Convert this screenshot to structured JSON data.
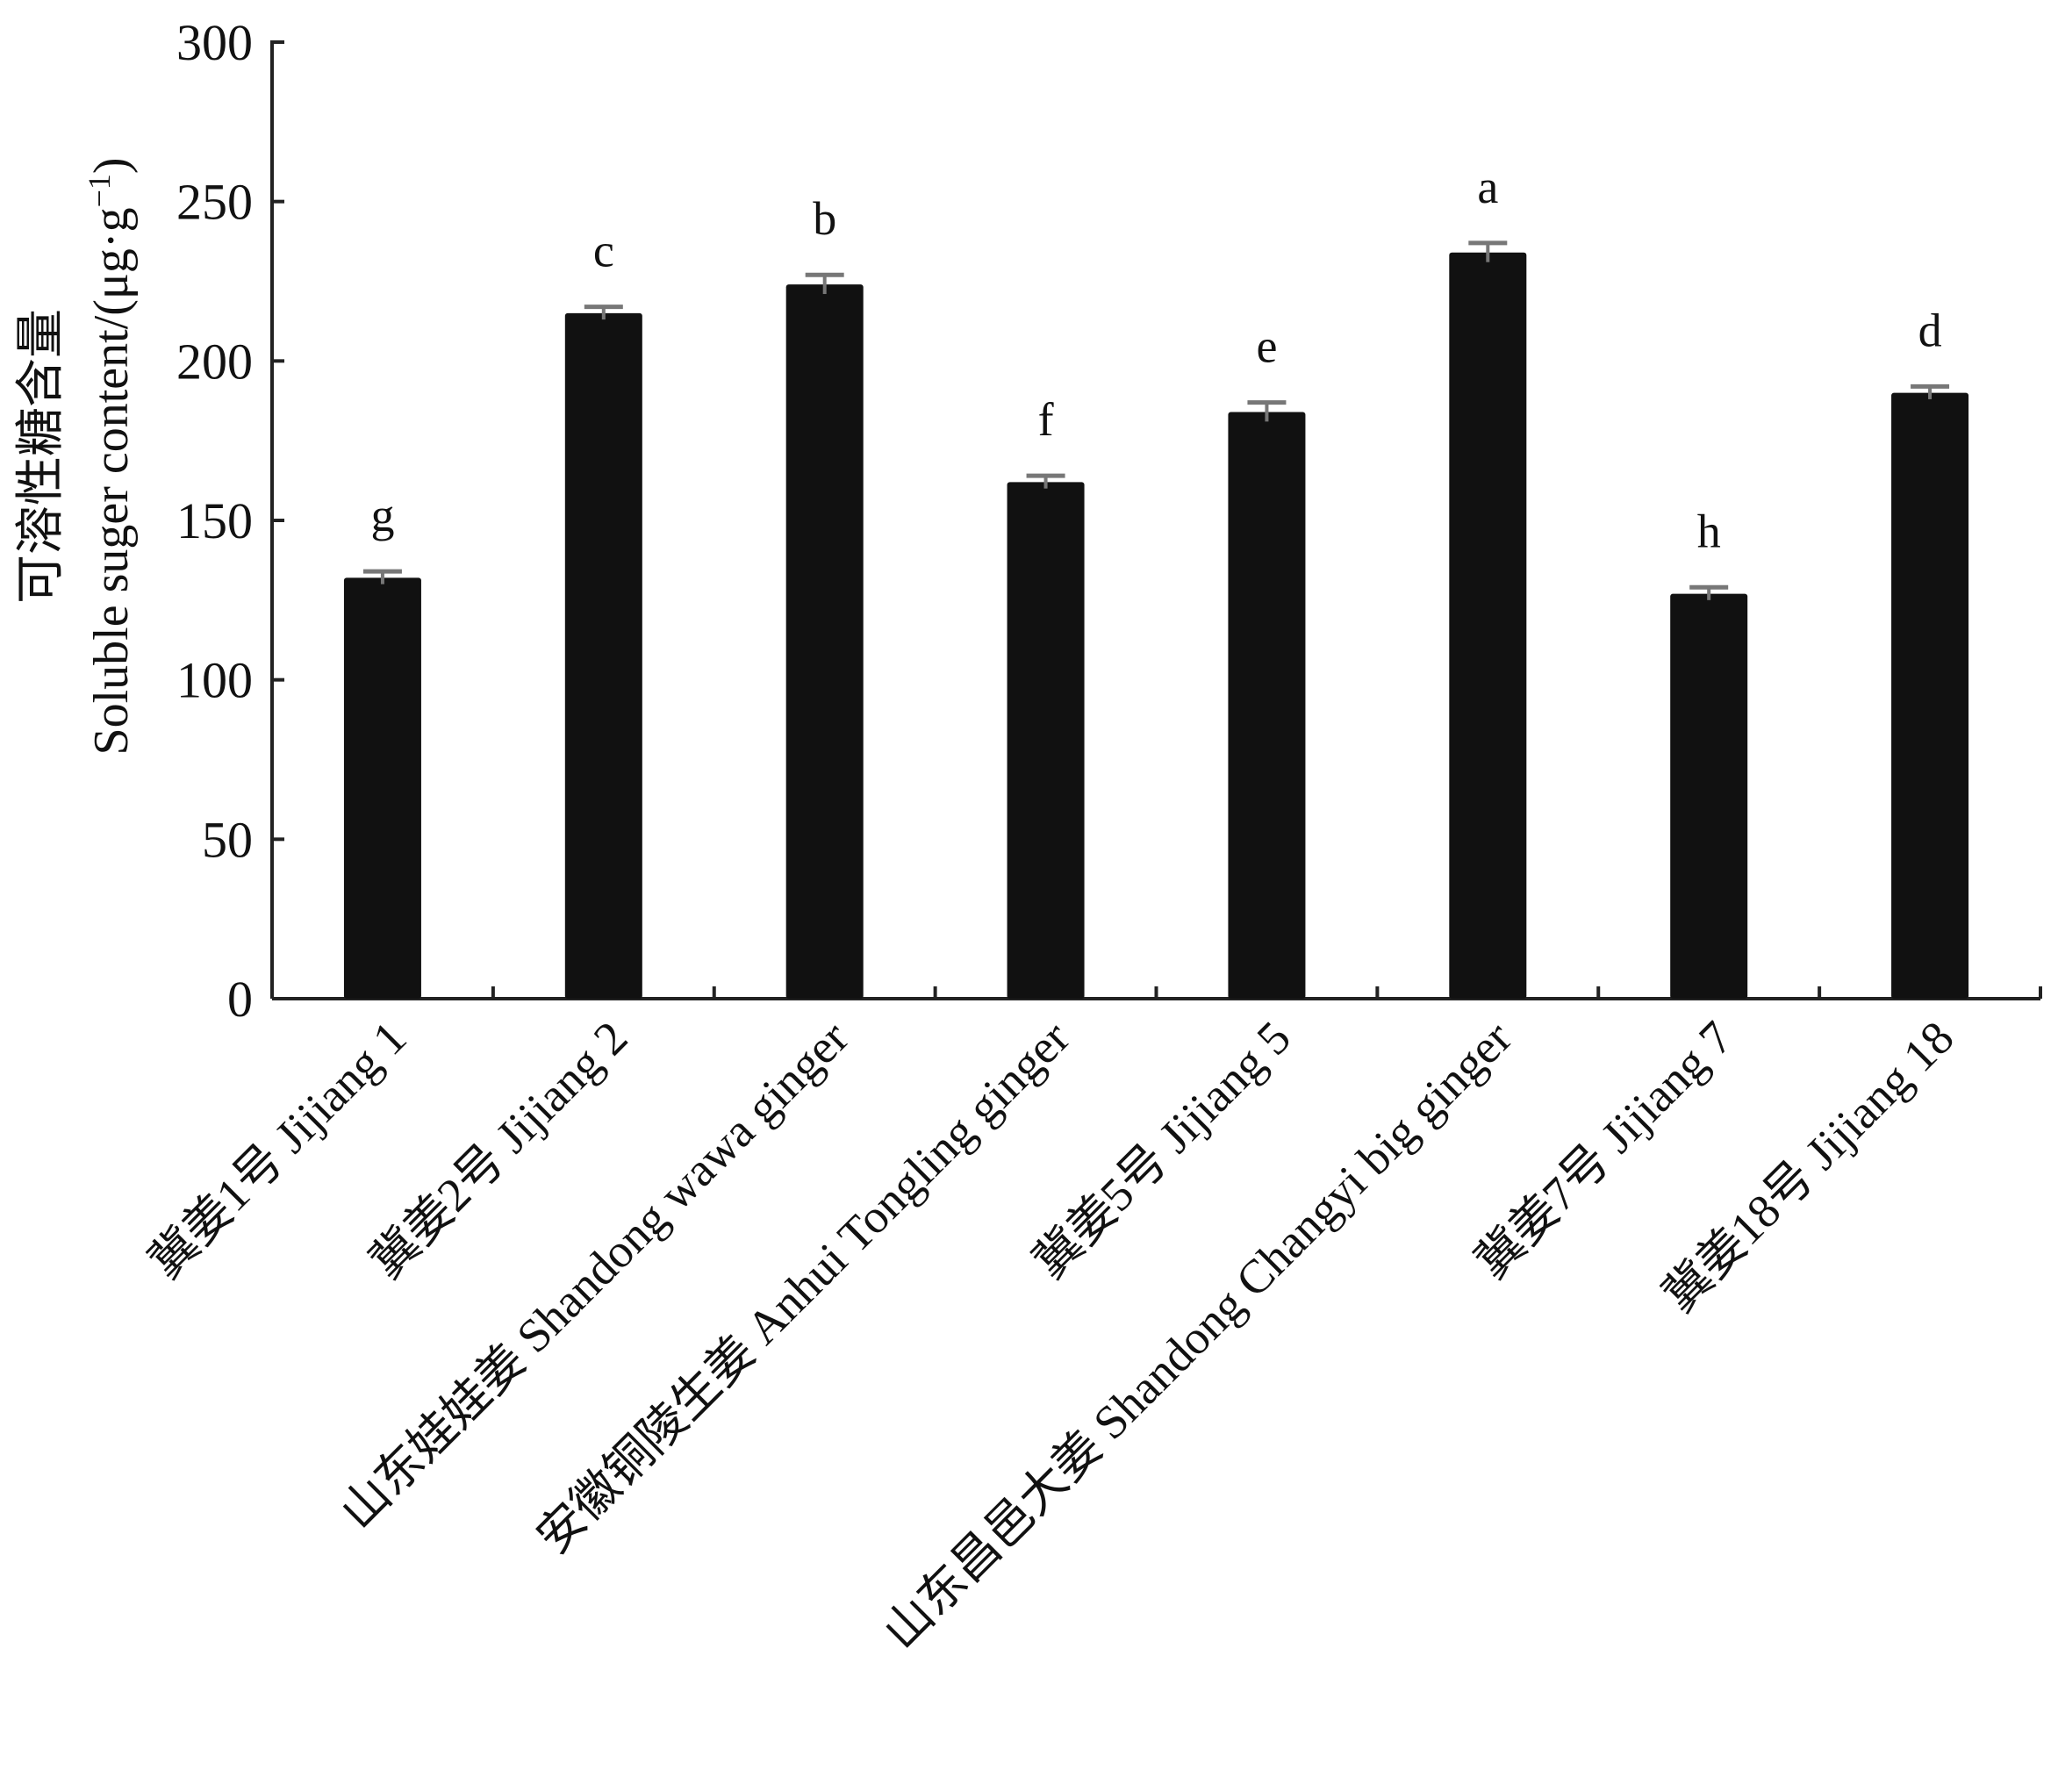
{
  "chart_data": {
    "type": "bar",
    "categories": [
      "冀姜1号 Jijiang 1",
      "冀姜2号 Jijiang 2",
      "山东娃娃姜 Shandong wawa ginger",
      "安徽铜陵生姜 Anhui Tongling ginger",
      "冀姜5号 Jijiang 5",
      "山东昌邑大姜 Shandong Changyi big ginger",
      "冀姜7号 Jijiang 7",
      "冀姜18号 Jijiang 18"
    ],
    "values": [
      132,
      215,
      224,
      162,
      184,
      234,
      127,
      190
    ],
    "errors": [
      2,
      2,
      3,
      2,
      3,
      3,
      2,
      2
    ],
    "significance_letters": [
      "g",
      "c",
      "b",
      "f",
      "e",
      "a",
      "h",
      "d"
    ],
    "title": "",
    "xlabel": "",
    "ylabel_line1": "可溶性糖含量",
    "ylabel_line2": "Soluble suger content/(μg·g",
    "ylabel_superscript": "−1",
    "ylabel_close": ")",
    "ylim": [
      0,
      300
    ],
    "yticks": [
      0,
      50,
      100,
      150,
      200,
      250,
      300
    ],
    "grid": false,
    "legend": "none",
    "colors": {
      "bar": "#111111",
      "axis": "#222222",
      "error": "#777777"
    }
  }
}
